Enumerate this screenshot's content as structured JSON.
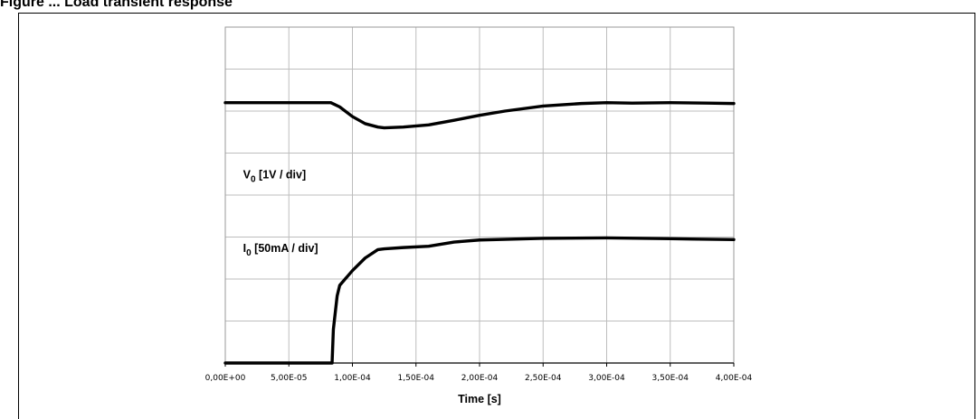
{
  "figure_title": "Figure ... Load transient response",
  "chart_data": {
    "type": "line",
    "title": "",
    "xlabel": "Time [s]",
    "ylabel": "",
    "xlim": [
      0,
      0.0004
    ],
    "ylim": [
      0,
      8
    ],
    "grid": true,
    "x_ticks": [
      0,
      5e-05,
      0.0001,
      0.00015,
      0.0002,
      0.00025,
      0.0003,
      0.00035,
      0.0004
    ],
    "x_tick_labels": [
      "0,00E+00",
      "5,00E-05",
      "1,00E-04",
      "1,50E-04",
      "2,00E-04",
      "2,50E-04",
      "3,00E-04",
      "3,50E-04",
      "4,00E-04"
    ],
    "y_divisions": 8,
    "annotations": [
      {
        "main": "V",
        "sub": "0",
        "rest": " [1V / div]",
        "x": 1.4e-05,
        "y": 4.4
      },
      {
        "main": "I",
        "sub": "0",
        "rest": " [50mA / div]",
        "x": 1.4e-05,
        "y": 2.65
      }
    ],
    "series": [
      {
        "x": [
          0,
          8e-05,
          8.3e-05,
          9e-05,
          0.0001,
          0.00011,
          0.00012,
          0.000125,
          0.00014,
          0.00016,
          0.00018,
          0.0002,
          0.00022,
          0.00025,
          0.00028,
          0.0003,
          0.00032,
          0.00035,
          0.00038,
          0.0004
        ],
        "y": [
          6.2,
          6.2,
          6.2,
          6.1,
          5.87,
          5.7,
          5.62,
          5.6,
          5.62,
          5.67,
          5.78,
          5.9,
          6.0,
          6.12,
          6.18,
          6.2,
          6.19,
          6.2,
          6.19,
          6.18
        ]
      },
      {
        "x": [
          0,
          8e-05,
          8.2e-05,
          8.4e-05,
          8.5e-05,
          8.8e-05,
          9e-05,
          0.0001,
          0.00011,
          0.00012,
          0.000125,
          0.00014,
          0.00016,
          0.00018,
          0.0002,
          0.00025,
          0.0003,
          0.00035,
          0.0004
        ],
        "y": [
          0,
          0,
          0,
          0,
          0.8,
          1.6,
          1.85,
          2.2,
          2.5,
          2.7,
          2.72,
          2.75,
          2.78,
          2.88,
          2.93,
          2.97,
          2.98,
          2.96,
          2.94
        ]
      }
    ]
  }
}
